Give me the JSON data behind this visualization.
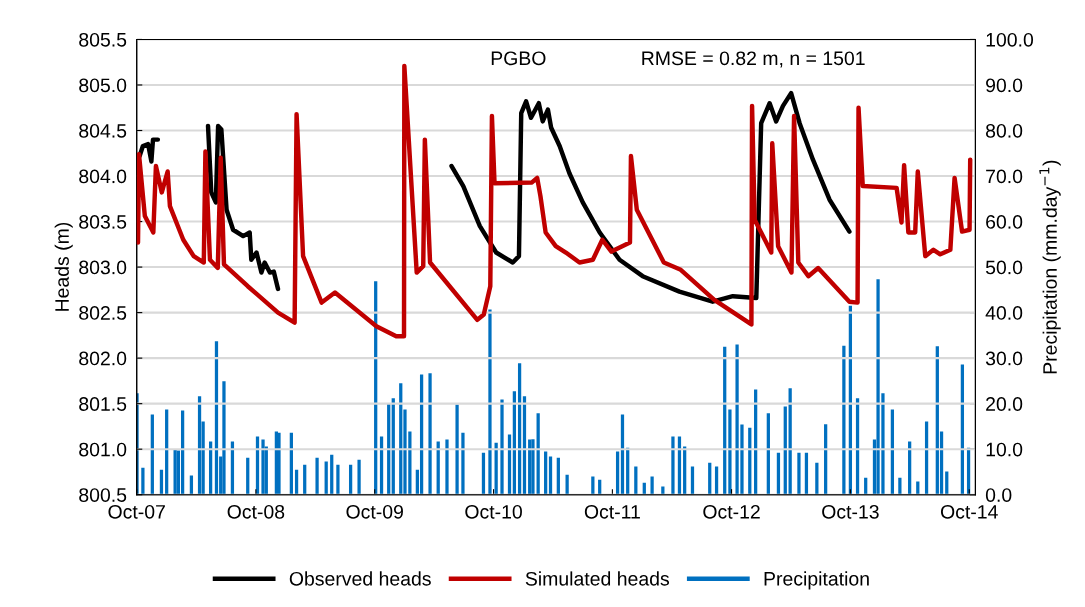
{
  "chart_data": {
    "type": "line",
    "ylabel": "Heads (m)",
    "y2label": "Precipitation (mm.day$^{−1}$)",
    "annotations": [
      "PGBO",
      "RMSE = 0.82 m, n = 1501"
    ],
    "xlim": [
      "2007-10-01",
      "2014-10-20"
    ],
    "xticks": [
      {
        "value": "2007-10-01",
        "label": "Oct-07"
      },
      {
        "value": "2008-10-01",
        "label": "Oct-08"
      },
      {
        "value": "2009-10-01",
        "label": "Oct-09"
      },
      {
        "value": "2010-10-01",
        "label": "Oct-10"
      },
      {
        "value": "2011-10-01",
        "label": "Oct-11"
      },
      {
        "value": "2012-10-01",
        "label": "Oct-12"
      },
      {
        "value": "2013-10-01",
        "label": "Oct-13"
      },
      {
        "value": "2014-10-01",
        "label": "Oct-14"
      }
    ],
    "ylim": [
      800.5,
      805.5
    ],
    "yticks": [
      {
        "value": 800.5,
        "label": "800.5"
      },
      {
        "value": 801.0,
        "label": "801.0"
      },
      {
        "value": 801.5,
        "label": "801.5"
      },
      {
        "value": 802.0,
        "label": "802.0"
      },
      {
        "value": 802.5,
        "label": "802.5"
      },
      {
        "value": 803.0,
        "label": "803.0"
      },
      {
        "value": 803.5,
        "label": "803.5"
      },
      {
        "value": 804.0,
        "label": "804.0"
      },
      {
        "value": 804.5,
        "label": "804.5"
      },
      {
        "value": 805.0,
        "label": "805.0"
      },
      {
        "value": 805.5,
        "label": "805.5"
      }
    ],
    "y2lim": [
      0,
      100
    ],
    "y2ticks": [
      {
        "value": 0,
        "label": "0.0"
      },
      {
        "value": 10,
        "label": "10.0"
      },
      {
        "value": 20,
        "label": "20.0"
      },
      {
        "value": 30,
        "label": "30.0"
      },
      {
        "value": 40,
        "label": "40.0"
      },
      {
        "value": 50,
        "label": "50.0"
      },
      {
        "value": 60,
        "label": "60.0"
      },
      {
        "value": 70,
        "label": "70.0"
      },
      {
        "value": 80,
        "label": "80.0"
      },
      {
        "value": 90,
        "label": "90.0"
      },
      {
        "value": 100,
        "label": "100.0"
      }
    ],
    "grid": "y",
    "legend": "bottom",
    "series": [
      {
        "name": "Observed heads",
        "color": "#000000",
        "x": [
          "2007-10-10",
          "2007-10-20",
          "2007-11-05",
          "2007-11-15",
          "2007-11-20",
          "2007-12-05",
          "2008-02-01",
          "2008-05-07",
          "2008-05-17",
          "2008-05-31",
          "2008-06-07",
          "2008-06-17",
          "2008-07-03",
          "2008-07-23",
          "2008-08-23",
          "2008-09-12",
          "2008-09-17",
          "2008-10-03",
          "2008-10-18",
          "2008-10-28",
          "2008-11-13",
          "2008-11-25",
          "2008-12-08",
          "2009-06-01",
          "2010-05-25",
          "2010-06-30",
          "2010-08-20",
          "2010-10-09",
          "2010-11-29",
          "2010-12-18",
          "2010-12-25",
          "2011-01-09",
          "2011-01-24",
          "2011-02-17",
          "2011-03-01",
          "2011-03-17",
          "2011-03-27",
          "2011-04-22",
          "2011-05-22",
          "2011-07-02",
          "2011-08-23",
          "2011-10-23",
          "2012-01-02",
          "2012-04-24",
          "2012-08-04",
          "2012-10-05",
          "2012-12-16",
          "2012-12-31",
          "2013-01-26",
          "2013-02-15",
          "2013-03-08",
          "2013-04-02",
          "2013-04-28",
          "2013-06-08",
          "2013-07-29",
          "2013-09-28"
        ],
        "values": [
          804.22,
          804.33,
          804.35,
          804.16,
          804.4,
          804.4,
          null,
          804.55,
          803.82,
          803.71,
          804.55,
          804.51,
          803.63,
          803.41,
          803.34,
          803.38,
          803.08,
          803.16,
          802.94,
          803.05,
          802.94,
          802.95,
          802.76,
          null,
          804.11,
          803.89,
          803.45,
          803.16,
          803.05,
          803.12,
          804.69,
          804.82,
          804.64,
          804.8,
          804.6,
          804.73,
          804.53,
          804.33,
          804.03,
          803.71,
          803.38,
          803.08,
          802.9,
          802.73,
          802.62,
          802.68,
          802.66,
          804.58,
          804.8,
          804.6,
          804.77,
          804.91,
          804.58,
          804.18,
          803.74,
          803.39
        ]
      },
      {
        "name": "Simulated heads",
        "color": "#c00000",
        "x": [
          "2007-10-05",
          "2007-10-08",
          "2007-10-26",
          "2007-11-21",
          "2007-11-29",
          "2007-12-17",
          "2008-01-04",
          "2008-01-11",
          "2008-02-21",
          "2008-03-24",
          "2008-04-24",
          "2008-04-29",
          "2008-05-13",
          "2008-06-06",
          "2008-06-15",
          "2008-06-25",
          "2008-09-06",
          "2008-12-08",
          "2009-01-28",
          "2009-02-03",
          "2009-02-23",
          "2009-04-21",
          "2009-06-01",
          "2009-10-06",
          "2009-12-06",
          "2009-12-30",
          "2009-12-31",
          "2010-02-07",
          "2010-02-27",
          "2010-03-04",
          "2010-03-20",
          "2010-08-12",
          "2010-09-01",
          "2010-09-21",
          "2010-09-26",
          "2010-10-04",
          "2011-01-27",
          "2011-02-12",
          "2011-02-22",
          "2011-03-10",
          "2011-04-10",
          "2011-05-11",
          "2011-06-22",
          "2011-08-02",
          "2011-08-31",
          "2011-09-28",
          "2011-11-24",
          "2011-11-27",
          "2011-12-15",
          "2012-03-07",
          "2012-04-28",
          "2012-08-09",
          "2012-12-01",
          "2012-12-03",
          "2012-12-11",
          "2013-01-31",
          "2013-02-03",
          "2013-02-21",
          "2013-04-03",
          "2013-04-11",
          "2013-04-24",
          "2013-05-25",
          "2013-06-24",
          "2013-09-28",
          "2013-10-23",
          "2013-10-26",
          "2013-11-08",
          "2014-02-20",
          "2014-03-07",
          "2014-03-15",
          "2014-03-28",
          "2014-04-18",
          "2014-04-26",
          "2014-05-19",
          "2014-06-13",
          "2014-07-04",
          "2014-08-04",
          "2014-08-17",
          "2014-09-09",
          "2014-10-02",
          "2014-10-04"
        ],
        "values": [
          803.27,
          804.24,
          803.56,
          803.38,
          804.11,
          803.82,
          804.05,
          803.67,
          803.3,
          803.12,
          803.05,
          804.27,
          803.08,
          802.99,
          804.2,
          803.03,
          802.79,
          802.5,
          802.39,
          804.68,
          803.12,
          802.61,
          802.72,
          802.35,
          802.24,
          802.24,
          805.21,
          802.94,
          803.01,
          804.4,
          803.05,
          802.42,
          802.48,
          802.79,
          804.66,
          803.92,
          803.93,
          803.98,
          803.78,
          803.38,
          803.23,
          803.16,
          803.05,
          803.08,
          803.3,
          803.17,
          803.27,
          804.22,
          803.63,
          803.05,
          802.97,
          802.64,
          802.37,
          804.77,
          803.52,
          803.16,
          804.36,
          803.23,
          802.94,
          804.66,
          803.05,
          802.9,
          802.99,
          802.62,
          802.61,
          804.75,
          803.89,
          803.87,
          803.49,
          804.12,
          803.38,
          803.38,
          804.05,
          803.12,
          803.19,
          803.14,
          803.19,
          803.98,
          803.39,
          803.41,
          804.18
        ]
      },
      {
        "name": "Precipitation",
        "color": "#0070c0",
        "type": "bar",
        "axis": "y2",
        "x": [
          "2007-10-02",
          "2007-10-20",
          "2007-11-18",
          "2007-12-16",
          "2008-01-01",
          "2008-01-27",
          "2008-02-06",
          "2008-02-19",
          "2008-03-17",
          "2008-04-11",
          "2008-04-22",
          "2008-05-15",
          "2008-06-02",
          "2008-06-15",
          "2008-06-25",
          "2008-07-21",
          "2008-09-06",
          "2008-10-06",
          "2008-10-23",
          "2008-11-02",
          "2008-12-03",
          "2008-12-11",
          "2009-01-18",
          "2009-02-03",
          "2009-02-28",
          "2009-04-07",
          "2009-05-05",
          "2009-05-22",
          "2009-06-10",
          "2009-07-19",
          "2009-08-14",
          "2009-10-04",
          "2009-10-22",
          "2009-11-13",
          "2009-11-27",
          "2009-12-20",
          "2010-01-02",
          "2010-01-17",
          "2010-02-09",
          "2010-02-22",
          "2010-03-20",
          "2010-04-14",
          "2010-05-11",
          "2010-06-11",
          "2010-06-29",
          "2010-08-31",
          "2010-09-20",
          "2010-10-09",
          "2010-10-27",
          "2010-11-19",
          "2010-12-04",
          "2010-12-20",
          "2011-01-04",
          "2011-01-20",
          "2011-01-30",
          "2011-02-15",
          "2011-03-10",
          "2011-03-25",
          "2011-04-18",
          "2011-05-15",
          "2011-08-02",
          "2011-08-23",
          "2011-10-17",
          "2011-11-01",
          "2011-11-17",
          "2011-12-12",
          "2012-01-07",
          "2012-01-31",
          "2012-03-04",
          "2012-04-04",
          "2012-04-24",
          "2012-05-10",
          "2012-06-03",
          "2012-07-26",
          "2012-08-16",
          "2012-09-10",
          "2012-09-26",
          "2012-10-18",
          "2012-11-02",
          "2012-11-26",
          "2012-12-14",
          "2013-01-22",
          "2013-02-22",
          "2013-03-15",
          "2013-03-30",
          "2013-04-26",
          "2013-05-19",
          "2013-06-20",
          "2013-07-17",
          "2013-09-11",
          "2013-10-01",
          "2013-10-23",
          "2013-11-17",
          "2013-12-14",
          "2013-12-25",
          "2014-01-09",
          "2014-02-07",
          "2014-03-02",
          "2014-04-01",
          "2014-04-26",
          "2014-05-23",
          "2014-06-25",
          "2014-07-08",
          "2014-07-24",
          "2014-09-10",
          "2014-09-29"
        ],
        "values": [
          22.3,
          5.9,
          17.6,
          5.5,
          18.7,
          9.9,
          9.7,
          18.5,
          4.2,
          21.6,
          16.1,
          11.7,
          33.7,
          8.4,
          24.9,
          11.7,
          8.1,
          12.8,
          12.1,
          10.6,
          13.9,
          13.6,
          13.6,
          5.5,
          6.6,
          8.1,
          7.3,
          8.8,
          6.6,
          6.6,
          7.7,
          46.9,
          12.8,
          20.1,
          21.2,
          24.5,
          18.7,
          13.9,
          5.5,
          26.4,
          26.7,
          11.7,
          12.1,
          19.8,
          13.6,
          9.2,
          40.7,
          11.4,
          20.9,
          13.2,
          22.7,
          28.9,
          21.6,
          12.1,
          12.2,
          17.9,
          9.5,
          8.4,
          8.1,
          4.4,
          4.0,
          3.3,
          9.5,
          17.6,
          10.3,
          6.2,
          2.6,
          4.0,
          1.8,
          12.8,
          12.8,
          10.6,
          6.2,
          7.0,
          6.2,
          32.5,
          18.7,
          33.0,
          15.4,
          14.7,
          23.1,
          17.9,
          9.2,
          19.4,
          23.4,
          9.2,
          9.2,
          7.0,
          15.5,
          32.7,
          41.5,
          21.2,
          3.7,
          12.1,
          47.3,
          22.3,
          18.7,
          3.7,
          11.7,
          2.9,
          16.1,
          32.6,
          13.9,
          5.1,
          28.6,
          10.3
        ]
      }
    ]
  }
}
